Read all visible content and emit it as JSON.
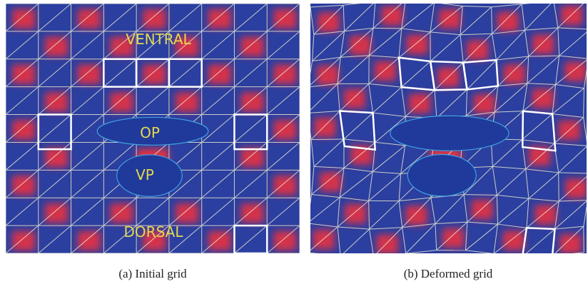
{
  "panels": [
    {
      "labels": {
        "ventral": "VENTRAL",
        "op": "OP",
        "vp": "VP",
        "dorsal": "DORSAL"
      },
      "caption": "(a) Initial grid"
    },
    {
      "caption": "(b) Deformed grid"
    }
  ]
}
